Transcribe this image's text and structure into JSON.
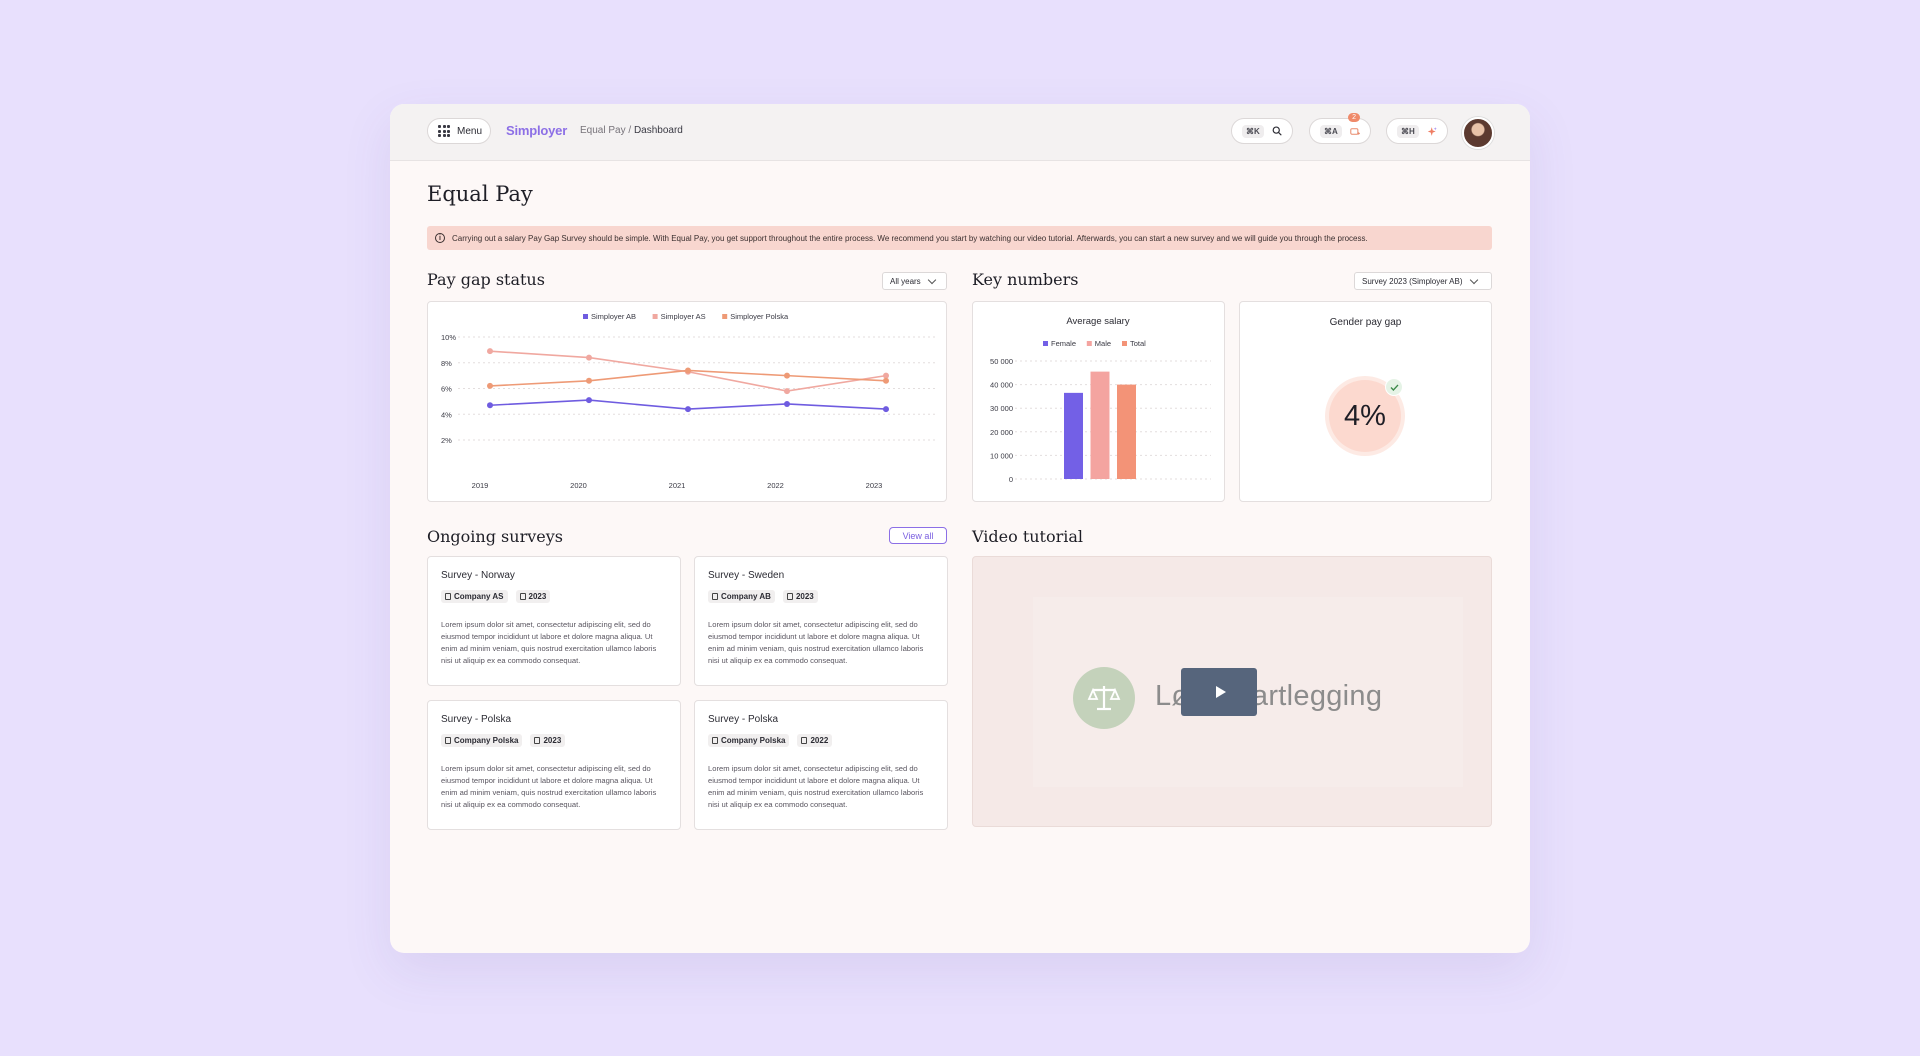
{
  "header": {
    "menu_label": "Menu",
    "brand": "Simployer",
    "breadcrumb_parent": "Equal Pay",
    "breadcrumb_sep": " / ",
    "breadcrumb_current": "Dashboard",
    "search_shortcut": "⌘K",
    "apps_shortcut": "⌘A",
    "apps_badge": "2",
    "ai_shortcut": "⌘H"
  },
  "page": {
    "title": "Equal Pay",
    "alert": "Carrying out a salary Pay Gap Survey should be simple. With Equal Pay, you get support throughout the entire process. We recommend you start by watching our video tutorial. Afterwards, you can start a new survey and we will guide you through the process."
  },
  "pay_gap": {
    "title": "Pay gap status",
    "filter": "All years"
  },
  "key_numbers": {
    "title": "Key numbers",
    "filter": "Survey 2023 (Simployer AB)",
    "gender_gap_title": "Gender pay gap",
    "gender_gap_value": "4%"
  },
  "surveys": {
    "title": "Ongoing surveys",
    "view_all": "View all",
    "items": [
      {
        "title": "Survey - Norway",
        "company": "Company AS",
        "year": "2023",
        "desc": "Lorem ipsum dolor sit amet, consectetur adipiscing elit, sed do eiusmod tempor incididunt ut labore et dolore magna aliqua. Ut enim ad minim veniam, quis nostrud exercitation ullamco laboris nisi ut aliquip ex ea commodo consequat."
      },
      {
        "title": "Survey - Sweden",
        "company": "Company AB",
        "year": "2023",
        "desc": "Lorem ipsum dolor sit amet, consectetur adipiscing elit, sed do eiusmod tempor incididunt ut labore et dolore magna aliqua. Ut enim ad minim veniam, quis nostrud exercitation ullamco laboris nisi ut aliquip ex ea commodo consequat."
      },
      {
        "title": "Survey - Polska",
        "company": "Company Polska",
        "year": "2023",
        "desc": "Lorem ipsum dolor sit amet, consectetur adipiscing elit, sed do eiusmod tempor incididunt ut labore et dolore magna aliqua. Ut enim ad minim veniam, quis nostrud exercitation ullamco laboris nisi ut aliquip ex ea commodo consequat."
      },
      {
        "title": "Survey - Polska",
        "company": "Company Polska",
        "year": "2022",
        "desc": "Lorem ipsum dolor sit amet, consectetur adipiscing elit, sed do eiusmod tempor incididunt ut labore et dolore magna aliqua. Ut enim ad minim veniam, quis nostrud exercitation ullamco laboris nisi ut aliquip ex ea commodo consequat."
      }
    ]
  },
  "video": {
    "title": "Video tutorial",
    "logo_text": "Lønnskartlegging"
  },
  "colors": {
    "accent": "#8c6fe6",
    "simployer_ab": "#6f5ce0",
    "simployer_as": "#f0a8a0",
    "simployer_polska": "#ee9a76",
    "gap_circle": "#fcd9cf",
    "check": "#e5f3e6"
  },
  "chart_data": [
    {
      "type": "line",
      "title": "",
      "x": [
        "2019",
        "2020",
        "2021",
        "2022",
        "2023"
      ],
      "ylim": [
        2,
        10
      ],
      "yticks": [
        2,
        4,
        6,
        8,
        10
      ],
      "ytick_labels": [
        "2%",
        "4%",
        "6%",
        "8%",
        "10%"
      ],
      "grid": true,
      "legend_position": "top-center",
      "series": [
        {
          "name": "Simployer AB",
          "color": "#6f5ce0",
          "values": [
            4.7,
            5.1,
            4.4,
            4.8,
            4.4
          ]
        },
        {
          "name": "Simployer AS",
          "color": "#f0a8a0",
          "values": [
            8.9,
            8.4,
            7.3,
            5.8,
            7.0
          ]
        },
        {
          "name": "Simployer Polska",
          "color": "#ee9a76",
          "values": [
            6.2,
            6.6,
            7.4,
            7.0,
            6.6
          ]
        }
      ]
    },
    {
      "type": "bar",
      "title": "Average salary",
      "categories": [
        "Female",
        "Male",
        "Total"
      ],
      "values": [
        36500,
        45500,
        40000
      ],
      "colors": [
        "#7360e6",
        "#f4a4a0",
        "#f39377"
      ],
      "ylim": [
        0,
        50000
      ],
      "yticks": [
        0,
        10000,
        20000,
        30000,
        40000,
        50000
      ],
      "ytick_labels": [
        "0",
        "10 000",
        "20 000",
        "30 000",
        "40 000",
        "50 000"
      ],
      "grid": true,
      "legend_position": "top-center"
    }
  ]
}
